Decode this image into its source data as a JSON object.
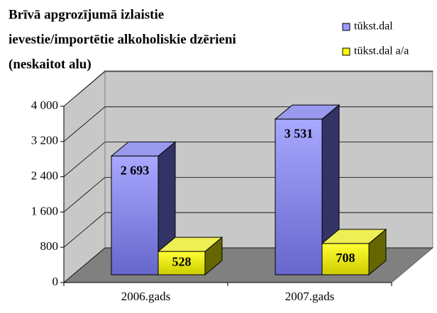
{
  "chart_data": {
    "type": "bar3d",
    "title": [
      "Brīvā apgrozījumā izlaistie",
      "ievestie/importētie alkoholiskie dzērieni",
      "(neskaitot alu)"
    ],
    "categories": [
      "2006.gads",
      "2007.gads"
    ],
    "series": [
      {
        "name": "tūkst.dal",
        "color": "#9999ff",
        "values": [
          2693,
          3531
        ],
        "value_labels": [
          "2 693",
          "3 531"
        ]
      },
      {
        "name": "tūkst.dal a/a",
        "color": "#ffff00",
        "values": [
          528,
          708
        ],
        "value_labels": [
          "528",
          "708"
        ]
      }
    ],
    "ylim": [
      0,
      4000
    ],
    "yticks": [
      0,
      800,
      {
        "value": 1600,
        "label": "1 600"
      },
      {
        "value": 2400,
        "label": "2 400"
      },
      {
        "value": 3200,
        "label": "3 200"
      },
      {
        "value": 4000,
        "label": "4 000"
      }
    ],
    "grid": true
  }
}
